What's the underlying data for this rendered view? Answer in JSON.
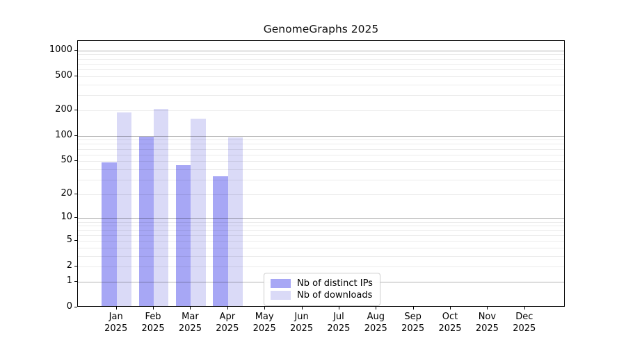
{
  "chart_data": {
    "type": "bar",
    "title": "GenomeGraphs 2025",
    "categories": [
      "Jan 2025",
      "Feb 2025",
      "Mar 2025",
      "Apr 2025",
      "May 2025",
      "Jun 2025",
      "Jul 2025",
      "Aug 2025",
      "Sep 2025",
      "Oct 2025",
      "Nov 2025",
      "Dec 2025"
    ],
    "x_tick_month": [
      "Jan",
      "Feb",
      "Mar",
      "Apr",
      "May",
      "Jun",
      "Jul",
      "Aug",
      "Sep",
      "Oct",
      "Nov",
      "Dec"
    ],
    "x_tick_year": "2025",
    "series": [
      {
        "name": "Nb of distinct IPs",
        "color": "#a7a7f5",
        "values": [
          48,
          97,
          45,
          33,
          0,
          0,
          0,
          0,
          0,
          0,
          0,
          0
        ]
      },
      {
        "name": "Nb of downloads",
        "color": "#dadaf7",
        "values": [
          188,
          205,
          160,
          95,
          0,
          0,
          0,
          0,
          0,
          0,
          0,
          0
        ]
      }
    ],
    "yscale": "log1p",
    "yticks": [
      0,
      1,
      2,
      5,
      10,
      20,
      50,
      100,
      200,
      500,
      1000
    ],
    "ylim": [
      0,
      1300
    ],
    "grid": {
      "major_at": [
        1,
        10,
        100,
        1000
      ],
      "minor_multipliers": [
        2,
        3,
        4,
        5,
        6,
        7,
        8,
        9
      ],
      "minor_decades": [
        1,
        10,
        100
      ]
    },
    "legend": {
      "location": "bottom-center",
      "entries": [
        "Nb of distinct IPs",
        "Nb of downloads"
      ]
    },
    "colors": {
      "axis": "#000000",
      "background": "#ffffff",
      "major_grid": "#b3b3b3",
      "minor_grid": "#ececec"
    }
  }
}
